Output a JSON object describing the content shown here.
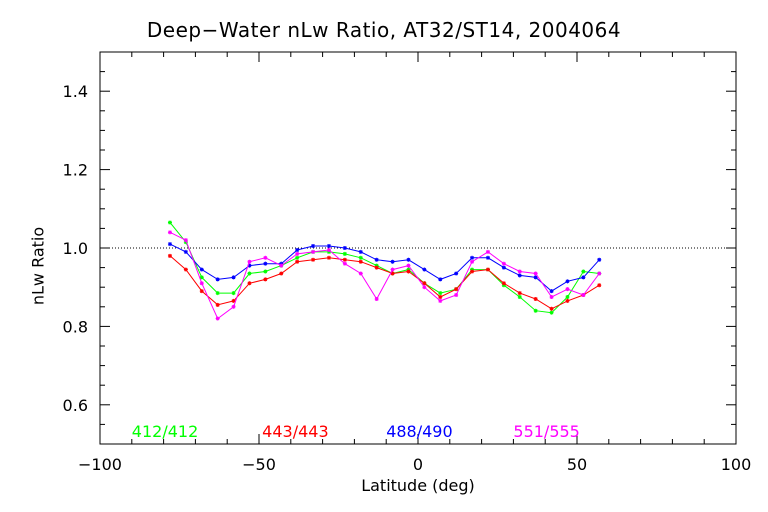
{
  "chart_data": {
    "type": "line",
    "title": "Deep−Water nLw Ratio, AT32/ST14, 2004064",
    "xlabel": "Latitude (deg)",
    "ylabel": "nLw Ratio",
    "xlim": [
      -100,
      100
    ],
    "ylim": [
      0.5,
      1.5
    ],
    "xticks": [
      -100,
      -50,
      0,
      50,
      100
    ],
    "xtick_labels": [
      "−100",
      "−50",
      "0",
      "50",
      "100"
    ],
    "yticks": [
      0.6,
      0.8,
      1.0,
      1.2,
      1.4
    ],
    "ytick_labels": [
      "0.6",
      "0.8",
      "1.0",
      "1.2",
      "1.4"
    ],
    "reference_line": 1.0,
    "legend_placement": "bottom, inside plot",
    "series": [
      {
        "name": "412/412",
        "color": "#00ff00",
        "x": [
          -78,
          -73,
          -68,
          -63,
          -58,
          -53,
          -48,
          -43,
          -38,
          -33,
          -28,
          -23,
          -18,
          -13,
          -8,
          -3,
          2,
          7,
          12,
          17,
          22,
          27,
          32,
          37,
          42,
          47,
          52,
          57
        ],
        "y": [
          1.065,
          1.015,
          0.925,
          0.885,
          0.885,
          0.935,
          0.94,
          0.955,
          0.975,
          0.99,
          0.99,
          0.985,
          0.975,
          0.955,
          0.935,
          0.945,
          0.91,
          0.885,
          0.895,
          0.945,
          0.945,
          0.905,
          0.875,
          0.84,
          0.835,
          0.875,
          0.94,
          0.935
        ]
      },
      {
        "name": "443/443",
        "color": "#ff0000",
        "x": [
          -78,
          -73,
          -68,
          -63,
          -58,
          -53,
          -48,
          -43,
          -38,
          -33,
          -28,
          -23,
          -18,
          -13,
          -8,
          -3,
          2,
          7,
          12,
          17,
          22,
          27,
          32,
          37,
          42,
          47,
          52,
          57
        ],
        "y": [
          0.98,
          0.945,
          0.89,
          0.855,
          0.865,
          0.91,
          0.92,
          0.935,
          0.965,
          0.97,
          0.975,
          0.97,
          0.965,
          0.95,
          0.935,
          0.94,
          0.91,
          0.875,
          0.895,
          0.94,
          0.945,
          0.91,
          0.885,
          0.87,
          0.845,
          0.865,
          0.88,
          0.905
        ]
      },
      {
        "name": "488/490",
        "color": "#0000ff",
        "x": [
          -78,
          -73,
          -68,
          -63,
          -58,
          -53,
          -48,
          -43,
          -38,
          -33,
          -28,
          -23,
          -18,
          -13,
          -8,
          -3,
          2,
          7,
          12,
          17,
          22,
          27,
          32,
          37,
          42,
          47,
          52,
          57
        ],
        "y": [
          1.01,
          0.99,
          0.945,
          0.92,
          0.925,
          0.955,
          0.96,
          0.96,
          0.995,
          1.005,
          1.005,
          1.0,
          0.99,
          0.97,
          0.965,
          0.97,
          0.945,
          0.92,
          0.935,
          0.975,
          0.975,
          0.95,
          0.93,
          0.925,
          0.89,
          0.915,
          0.925,
          0.97
        ]
      },
      {
        "name": "551/555",
        "color": "#ff00ff",
        "x": [
          -78,
          -73,
          -68,
          -63,
          -58,
          -53,
          -48,
          -43,
          -38,
          -33,
          -28,
          -23,
          -18,
          -13,
          -8,
          -3,
          2,
          7,
          12,
          17,
          22,
          27,
          32,
          37,
          42,
          47,
          52,
          57
        ],
        "y": [
          1.04,
          1.02,
          0.91,
          0.82,
          0.85,
          0.965,
          0.975,
          0.955,
          0.985,
          0.99,
          0.995,
          0.96,
          0.935,
          0.87,
          0.945,
          0.955,
          0.9,
          0.865,
          0.88,
          0.965,
          0.99,
          0.96,
          0.94,
          0.935,
          0.875,
          0.895,
          0.88,
          0.935
        ]
      }
    ]
  }
}
